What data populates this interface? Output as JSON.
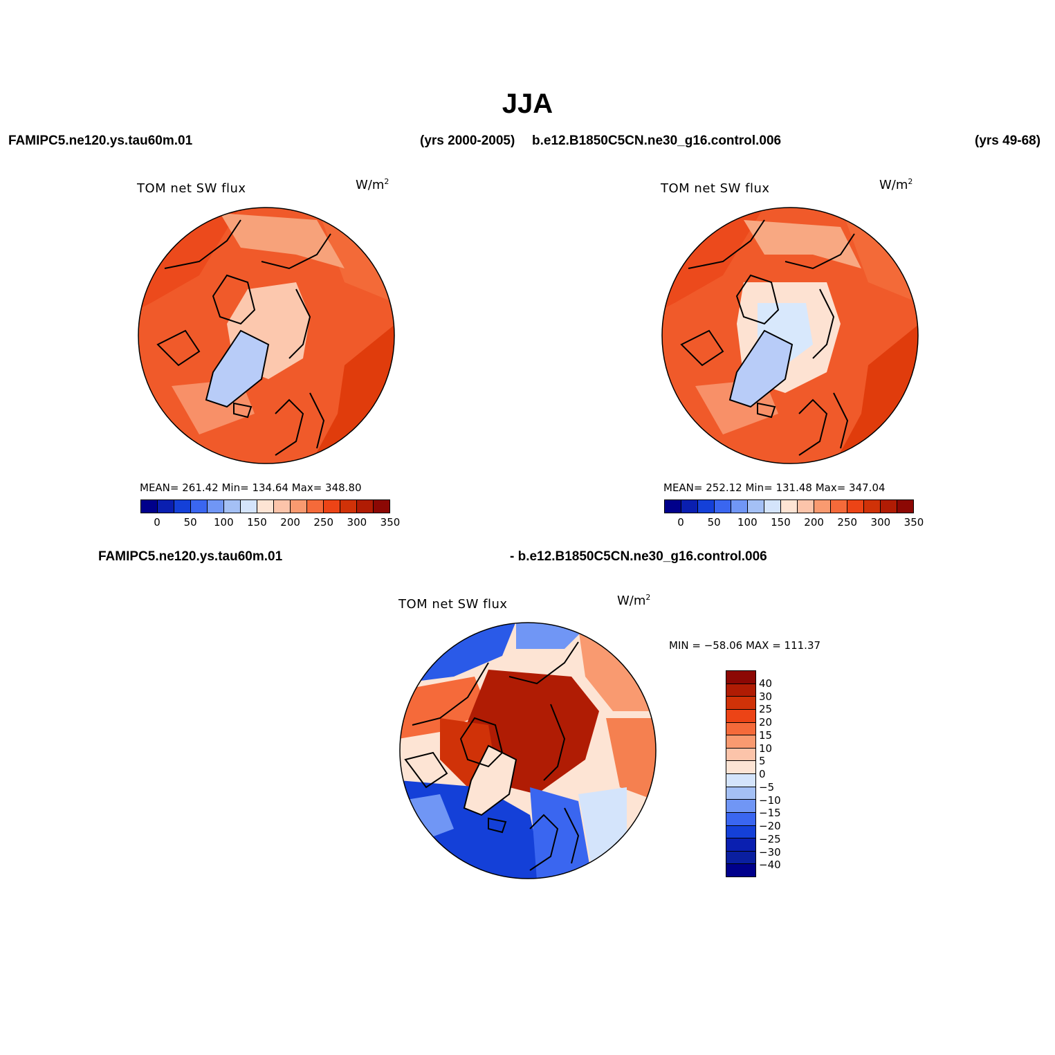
{
  "title": "JJA",
  "top_left": {
    "case": "FAMIPC5.ne120.ys.tau60m.01",
    "years": "(yrs 2000-2005)",
    "panel_title": "TOM net SW flux",
    "units": "W/m",
    "units_exp": "2",
    "stats": "MEAN= 261.42   Min= 134.64   Max= 348.80"
  },
  "top_right": {
    "case": "b.e12.B1850C5CN.ne30_g16.control.006",
    "years": "(yrs 49-68)",
    "panel_title": "TOM net SW flux",
    "units": "W/m",
    "units_exp": "2",
    "stats": "MEAN= 252.12   Min= 131.48   Max= 347.04"
  },
  "diff": {
    "case_a": "FAMIPC5.ne120.ys.tau60m.01",
    "case_b": "- b.e12.B1850C5CN.ne30_g16.control.006",
    "panel_title": "TOM net SW flux",
    "units": "W/m",
    "units_exp": "2",
    "stats": "MIN = −58.06 MAX = 111.37"
  },
  "colorbar_abs": {
    "ticks": [
      "0",
      "50",
      "100",
      "150",
      "200",
      "250",
      "300",
      "350"
    ],
    "colors": [
      "#00008b",
      "#0a1fb0",
      "#1440d8",
      "#3a66f0",
      "#7096f5",
      "#a4c0f5",
      "#d4e4fb",
      "#fde4d4",
      "#fcc4aa",
      "#f99a70",
      "#f56a3a",
      "#ec4416",
      "#d03208",
      "#b01c04",
      "#8c0804"
    ]
  },
  "colorbar_diff": {
    "ticks": [
      "40",
      "30",
      "25",
      "20",
      "15",
      "10",
      "5",
      "0",
      "−5",
      "−10",
      "−15",
      "−20",
      "−25",
      "−30",
      "−40"
    ],
    "colors": [
      "#8c0804",
      "#b01c04",
      "#d03208",
      "#ec4416",
      "#f56a3a",
      "#f99a70",
      "#fcc4aa",
      "#fde4d4",
      "#d4e4fb",
      "#a4c0f5",
      "#7096f5",
      "#3a66f0",
      "#1440d8",
      "#0a1fb0",
      "#0a1fa0",
      "#00008b"
    ]
  }
}
